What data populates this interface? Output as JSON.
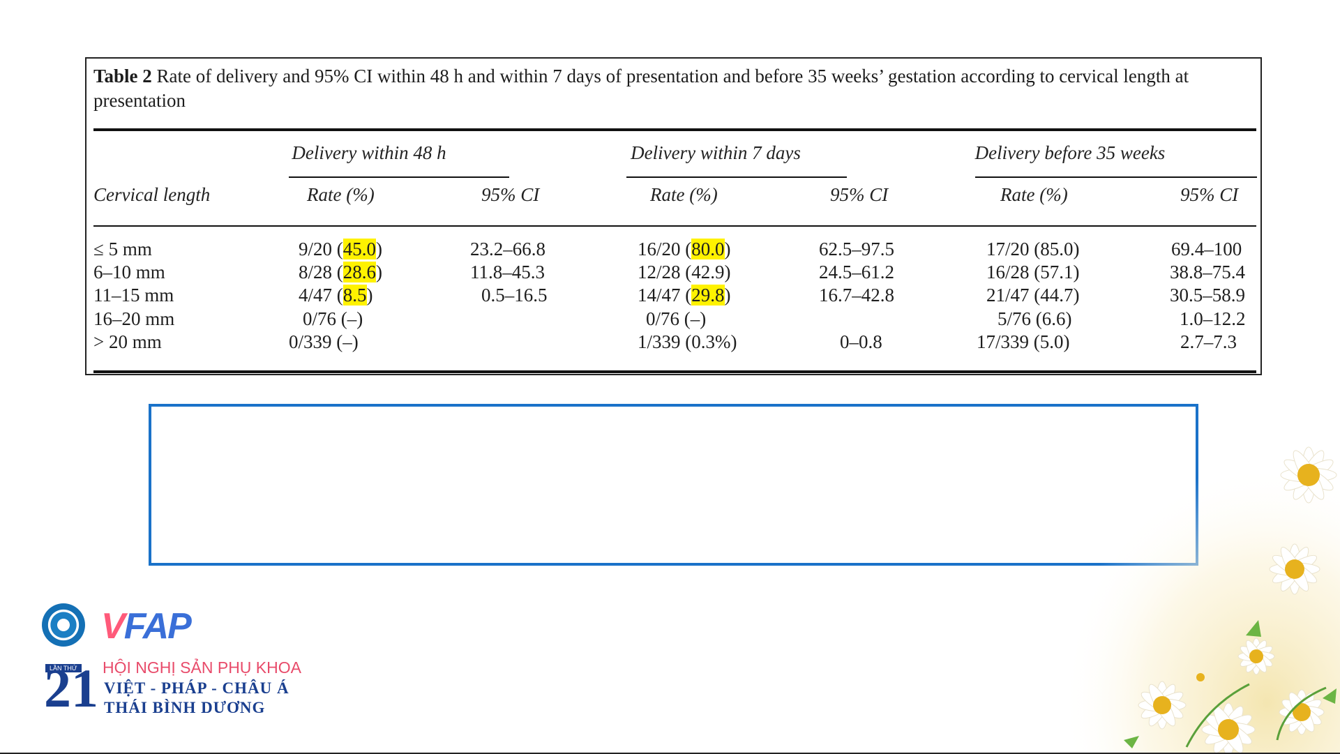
{
  "table": {
    "caption_label": "Table 2",
    "caption_text": "Rate of delivery and 95% CI within 48 h and within 7 days of presentation and before 35 weeks’ gestation according to cervical length at presentation",
    "row_header": "Cervical length",
    "groups": [
      "Delivery within 48 h",
      "Delivery within 7 days",
      "Delivery before 35 weeks"
    ],
    "subheaders": [
      "Rate (%)",
      "95% CI",
      "Rate (%)",
      "95% CI",
      "Rate (%)",
      "95% CI"
    ],
    "rows": [
      {
        "length": "≤ 5 mm",
        "r48_pre": "9/20 (",
        "r48_hl": "45.0",
        "r48_post": ")",
        "ci48": "23.2–66.8",
        "r7_pre": "16/20 (",
        "r7_hl": "80.0",
        "r7_post": ")",
        "ci7": "62.5–97.5",
        "r35": "17/20 (85.0)",
        "ci35": "69.4–100"
      },
      {
        "length": "6–10 mm",
        "r48_pre": "8/28 (",
        "r48_hl": "28.6",
        "r48_post": ")",
        "ci48": "11.8–45.3",
        "r7_pre": "12/28 (42.9)",
        "r7_hl": "",
        "r7_post": "",
        "ci7": "24.5–61.2",
        "r35": "16/28 (57.1)",
        "ci35": "38.8–75.4"
      },
      {
        "length": "11–15 mm",
        "r48_pre": "4/47 (",
        "r48_hl": "8.5",
        "r48_post": ")",
        "ci48": "0.5–16.5",
        "r7_pre": "14/47 (",
        "r7_hl": "29.8",
        "r7_post": ")",
        "ci7": "16.7–42.8",
        "r35": "21/47 (44.7)",
        "ci35": "30.5–58.9"
      },
      {
        "length": "16–20 mm",
        "r48_pre": "0/76 (–)",
        "r48_hl": "",
        "r48_post": "",
        "ci48": "",
        "r7_pre": "0/76 (–)",
        "r7_hl": "",
        "r7_post": "",
        "ci7": "",
        "r35": "5/76 (6.6)",
        "ci35": "1.0–12.2"
      },
      {
        "length": "> 20 mm",
        "r48_pre": "0/339 (–)",
        "r48_hl": "",
        "r48_post": "",
        "ci48": "",
        "r7_pre": "1/339 (0.3%)",
        "r7_hl": "",
        "r7_post": "",
        "ci7": "0–0.8",
        "r35": "17/339 (5.0)",
        "ci35": "2.7–7.3"
      }
    ]
  },
  "logo": {
    "vfap_v": "V",
    "vfap_rest": "FAP",
    "lan_thu": "LẦN THỨ",
    "number": "21",
    "conf_line1": "HỘI NGHỊ SẢN PHỤ KHOA",
    "conf_line2": "VIỆT - PHÁP - CHÂU Á",
    "conf_line3": "THÁI BÌNH DƯƠNG"
  },
  "colors": {
    "highlight": "#fff200",
    "box_border": "#1a72c9"
  }
}
